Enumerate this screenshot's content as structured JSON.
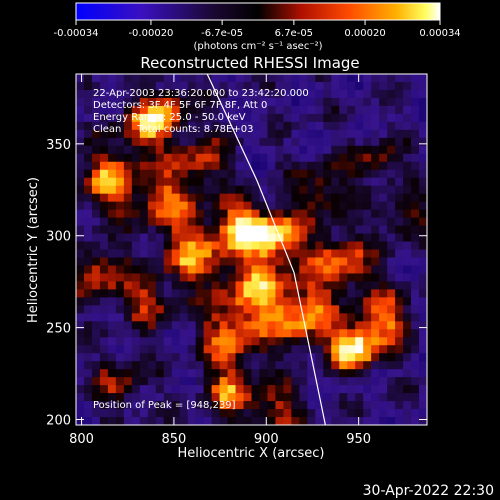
{
  "chart_data": {
    "type": "heatmap",
    "title": "Reconstructed RHESSI Image",
    "xlabel": "Heliocentric X (arcsec)",
    "ylabel": "Heliocentric Y (arcsec)",
    "xlim": [
      797,
      987
    ],
    "ylim": [
      197,
      388
    ],
    "xticks": [
      800,
      850,
      900,
      950
    ],
    "yticks": [
      200,
      250,
      300,
      350
    ],
    "colormap": "rhessi-hot (dark blue → black → red → orange → yellow → white)",
    "colorbar": {
      "range": [
        -0.00034,
        0.00034
      ],
      "ticks": [
        -0.00034,
        -0.0002,
        -6.7e-05,
        6.7e-05,
        0.0002,
        0.00034
      ],
      "tick_labels": [
        "-0.00034",
        "-0.00020",
        "-6.7e-05",
        "6.7e-05",
        "0.00020",
        "0.00034"
      ],
      "units": "(photons cm⁻² s⁻¹ asec⁻²)"
    },
    "annotations": {
      "time_range": "22-Apr-2003 23:36:20.000 to 23:42:20.000",
      "detectors": "Detectors: 3F 4F 5F 6F 7F 8F, Att 0",
      "energy": "Energy Range: 25.0 - 50.0 keV",
      "method": "Clean     Total counts: 8.78E+03",
      "peak": "Position of Peak = [948,239]"
    },
    "peak_position": [
      948,
      239
    ],
    "limb_line": [
      [
        868,
        388
      ],
      [
        895,
        330
      ],
      [
        915,
        280
      ],
      [
        932,
        197
      ]
    ],
    "footer_date": "30-Apr-2022 22:30"
  }
}
